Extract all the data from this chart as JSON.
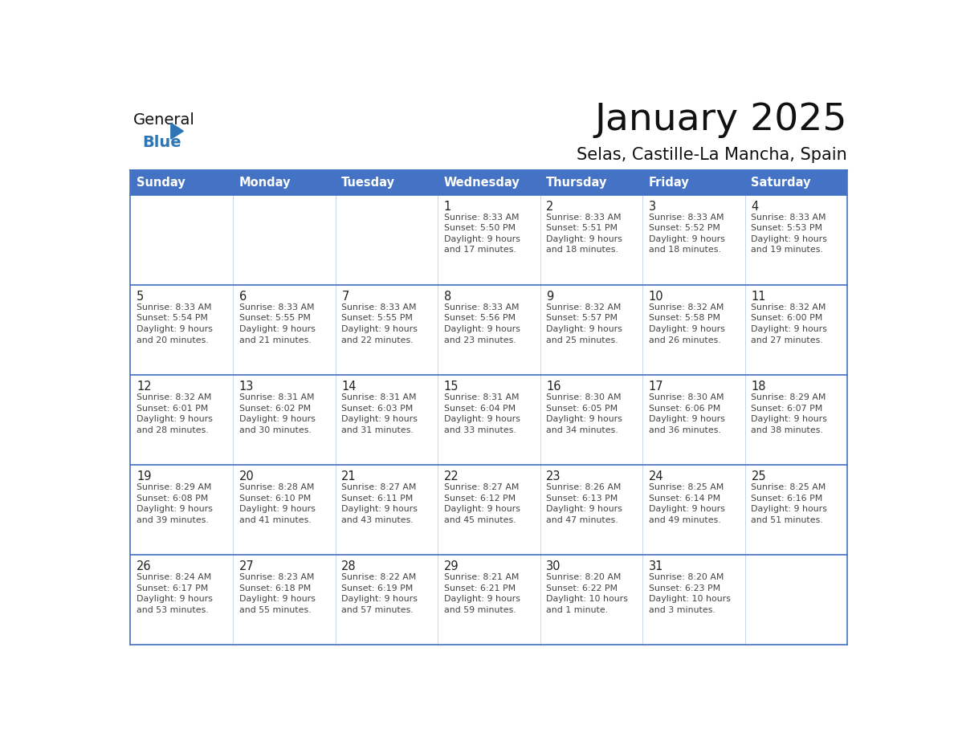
{
  "title": "January 2025",
  "subtitle": "Selas, Castille-La Mancha, Spain",
  "days_of_week": [
    "Sunday",
    "Monday",
    "Tuesday",
    "Wednesday",
    "Thursday",
    "Friday",
    "Saturday"
  ],
  "header_bg": "#4472C4",
  "header_text": "#FFFFFF",
  "cell_bg": "#FFFFFF",
  "border_color": "#4472C4",
  "text_color": "#444444",
  "day_number_color": "#222222",
  "title_color": "#111111",
  "logo_general_color": "#111111",
  "logo_blue_color": "#2E75B6",
  "weeks": [
    [
      {
        "day": "",
        "info": ""
      },
      {
        "day": "",
        "info": ""
      },
      {
        "day": "",
        "info": ""
      },
      {
        "day": "1",
        "info": "Sunrise: 8:33 AM\nSunset: 5:50 PM\nDaylight: 9 hours\nand 17 minutes."
      },
      {
        "day": "2",
        "info": "Sunrise: 8:33 AM\nSunset: 5:51 PM\nDaylight: 9 hours\nand 18 minutes."
      },
      {
        "day": "3",
        "info": "Sunrise: 8:33 AM\nSunset: 5:52 PM\nDaylight: 9 hours\nand 18 minutes."
      },
      {
        "day": "4",
        "info": "Sunrise: 8:33 AM\nSunset: 5:53 PM\nDaylight: 9 hours\nand 19 minutes."
      }
    ],
    [
      {
        "day": "5",
        "info": "Sunrise: 8:33 AM\nSunset: 5:54 PM\nDaylight: 9 hours\nand 20 minutes."
      },
      {
        "day": "6",
        "info": "Sunrise: 8:33 AM\nSunset: 5:55 PM\nDaylight: 9 hours\nand 21 minutes."
      },
      {
        "day": "7",
        "info": "Sunrise: 8:33 AM\nSunset: 5:55 PM\nDaylight: 9 hours\nand 22 minutes."
      },
      {
        "day": "8",
        "info": "Sunrise: 8:33 AM\nSunset: 5:56 PM\nDaylight: 9 hours\nand 23 minutes."
      },
      {
        "day": "9",
        "info": "Sunrise: 8:32 AM\nSunset: 5:57 PM\nDaylight: 9 hours\nand 25 minutes."
      },
      {
        "day": "10",
        "info": "Sunrise: 8:32 AM\nSunset: 5:58 PM\nDaylight: 9 hours\nand 26 minutes."
      },
      {
        "day": "11",
        "info": "Sunrise: 8:32 AM\nSunset: 6:00 PM\nDaylight: 9 hours\nand 27 minutes."
      }
    ],
    [
      {
        "day": "12",
        "info": "Sunrise: 8:32 AM\nSunset: 6:01 PM\nDaylight: 9 hours\nand 28 minutes."
      },
      {
        "day": "13",
        "info": "Sunrise: 8:31 AM\nSunset: 6:02 PM\nDaylight: 9 hours\nand 30 minutes."
      },
      {
        "day": "14",
        "info": "Sunrise: 8:31 AM\nSunset: 6:03 PM\nDaylight: 9 hours\nand 31 minutes."
      },
      {
        "day": "15",
        "info": "Sunrise: 8:31 AM\nSunset: 6:04 PM\nDaylight: 9 hours\nand 33 minutes."
      },
      {
        "day": "16",
        "info": "Sunrise: 8:30 AM\nSunset: 6:05 PM\nDaylight: 9 hours\nand 34 minutes."
      },
      {
        "day": "17",
        "info": "Sunrise: 8:30 AM\nSunset: 6:06 PM\nDaylight: 9 hours\nand 36 minutes."
      },
      {
        "day": "18",
        "info": "Sunrise: 8:29 AM\nSunset: 6:07 PM\nDaylight: 9 hours\nand 38 minutes."
      }
    ],
    [
      {
        "day": "19",
        "info": "Sunrise: 8:29 AM\nSunset: 6:08 PM\nDaylight: 9 hours\nand 39 minutes."
      },
      {
        "day": "20",
        "info": "Sunrise: 8:28 AM\nSunset: 6:10 PM\nDaylight: 9 hours\nand 41 minutes."
      },
      {
        "day": "21",
        "info": "Sunrise: 8:27 AM\nSunset: 6:11 PM\nDaylight: 9 hours\nand 43 minutes."
      },
      {
        "day": "22",
        "info": "Sunrise: 8:27 AM\nSunset: 6:12 PM\nDaylight: 9 hours\nand 45 minutes."
      },
      {
        "day": "23",
        "info": "Sunrise: 8:26 AM\nSunset: 6:13 PM\nDaylight: 9 hours\nand 47 minutes."
      },
      {
        "day": "24",
        "info": "Sunrise: 8:25 AM\nSunset: 6:14 PM\nDaylight: 9 hours\nand 49 minutes."
      },
      {
        "day": "25",
        "info": "Sunrise: 8:25 AM\nSunset: 6:16 PM\nDaylight: 9 hours\nand 51 minutes."
      }
    ],
    [
      {
        "day": "26",
        "info": "Sunrise: 8:24 AM\nSunset: 6:17 PM\nDaylight: 9 hours\nand 53 minutes."
      },
      {
        "day": "27",
        "info": "Sunrise: 8:23 AM\nSunset: 6:18 PM\nDaylight: 9 hours\nand 55 minutes."
      },
      {
        "day": "28",
        "info": "Sunrise: 8:22 AM\nSunset: 6:19 PM\nDaylight: 9 hours\nand 57 minutes."
      },
      {
        "day": "29",
        "info": "Sunrise: 8:21 AM\nSunset: 6:21 PM\nDaylight: 9 hours\nand 59 minutes."
      },
      {
        "day": "30",
        "info": "Sunrise: 8:20 AM\nSunset: 6:22 PM\nDaylight: 10 hours\nand 1 minute."
      },
      {
        "day": "31",
        "info": "Sunrise: 8:20 AM\nSunset: 6:23 PM\nDaylight: 10 hours\nand 3 minutes."
      },
      {
        "day": "",
        "info": ""
      }
    ]
  ]
}
